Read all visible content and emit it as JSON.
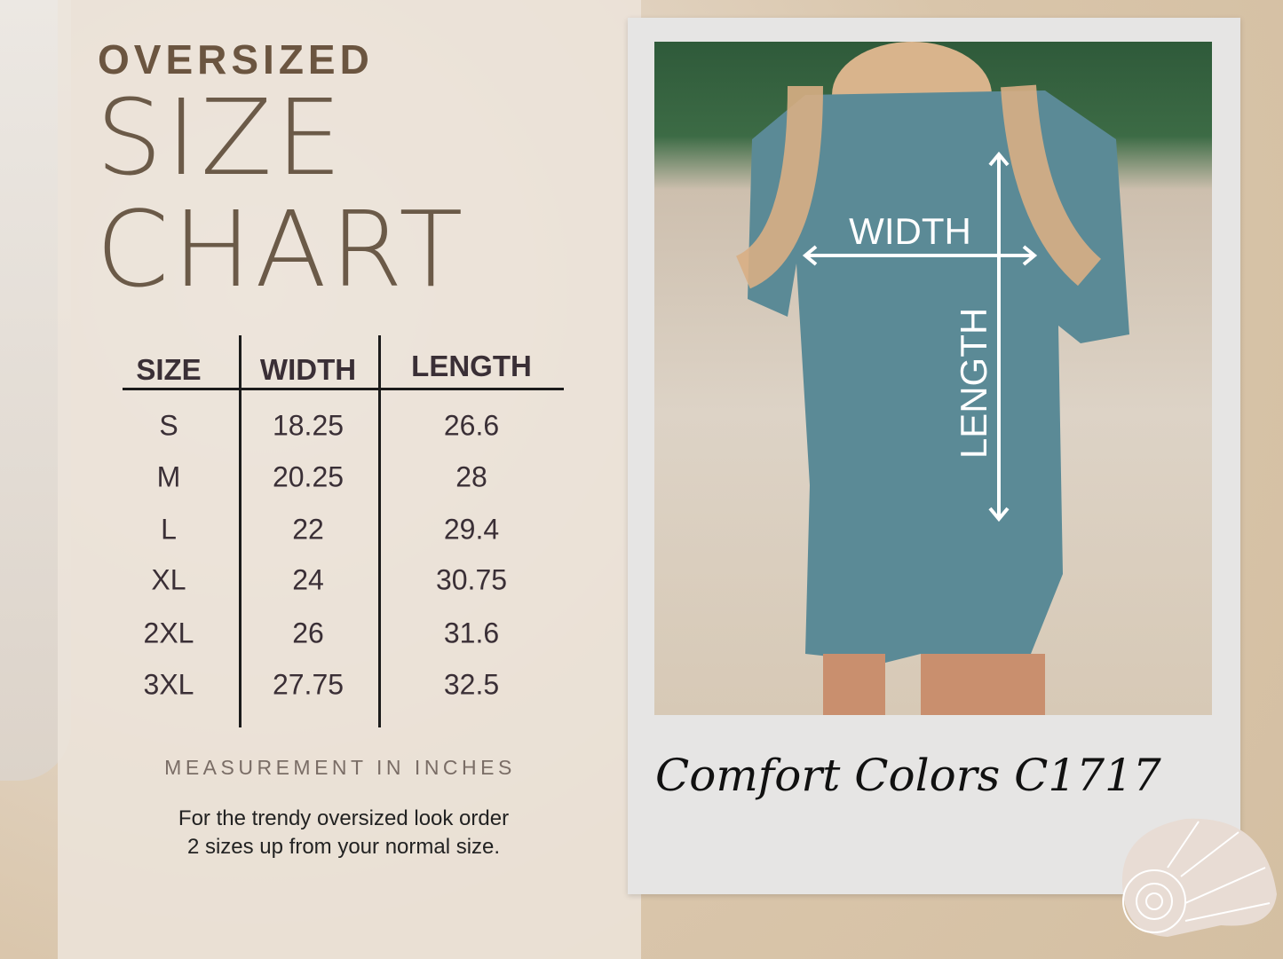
{
  "heading": {
    "line1": "OVERSIZED",
    "line2": "SIZE",
    "line3": "CHART"
  },
  "table": {
    "headers": [
      "SIZE",
      "WIDTH",
      "LENGTH"
    ],
    "rows": [
      [
        "S",
        "18.25",
        "26.6"
      ],
      [
        "M",
        "20.25",
        "28"
      ],
      [
        "L",
        "22",
        "29.4"
      ],
      [
        "XL",
        "24",
        "30.75"
      ],
      [
        "2XL",
        "26",
        "31.6"
      ],
      [
        "3XL",
        "27.75",
        "32.5"
      ]
    ]
  },
  "units_note": "MEASUREMENT IN INCHES",
  "tip": {
    "line1": "For the trendy oversized look order",
    "line2": "2 sizes up from your normal size."
  },
  "photo": {
    "width_label": "WIDTH",
    "length_label": "LENGTH",
    "shirt_color": "#5b8a96"
  },
  "brand": "Comfort Colors C1717",
  "colors": {
    "heading": "#6b5540",
    "text": "#3a2f36",
    "polaroid": "#e6e5e4",
    "sand": "#d8c4a8"
  }
}
